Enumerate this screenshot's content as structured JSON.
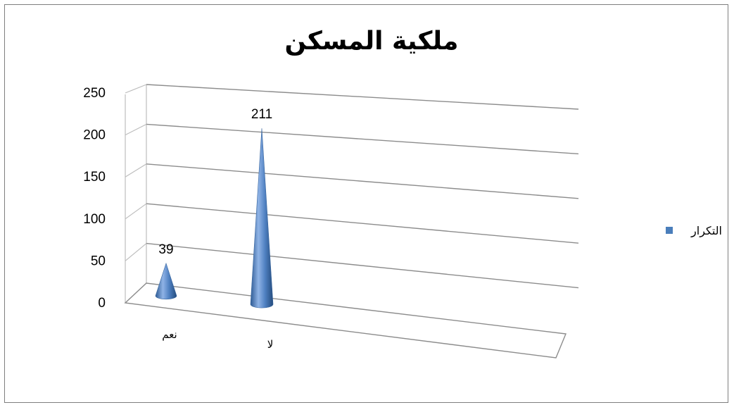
{
  "chart_data": {
    "type": "bar",
    "style": "3d-cone",
    "title": "ملكية المسكن",
    "categories": [
      "نعم",
      "لا"
    ],
    "series": [
      {
        "name": "التكرار",
        "values": [
          39,
          211
        ],
        "color": "#4a7ebb"
      }
    ],
    "data_labels": [
      "39",
      "211"
    ],
    "ylim": [
      0,
      250
    ],
    "yticks": [
      0,
      50,
      100,
      150,
      200,
      250
    ],
    "grid": true,
    "legend": "right"
  }
}
